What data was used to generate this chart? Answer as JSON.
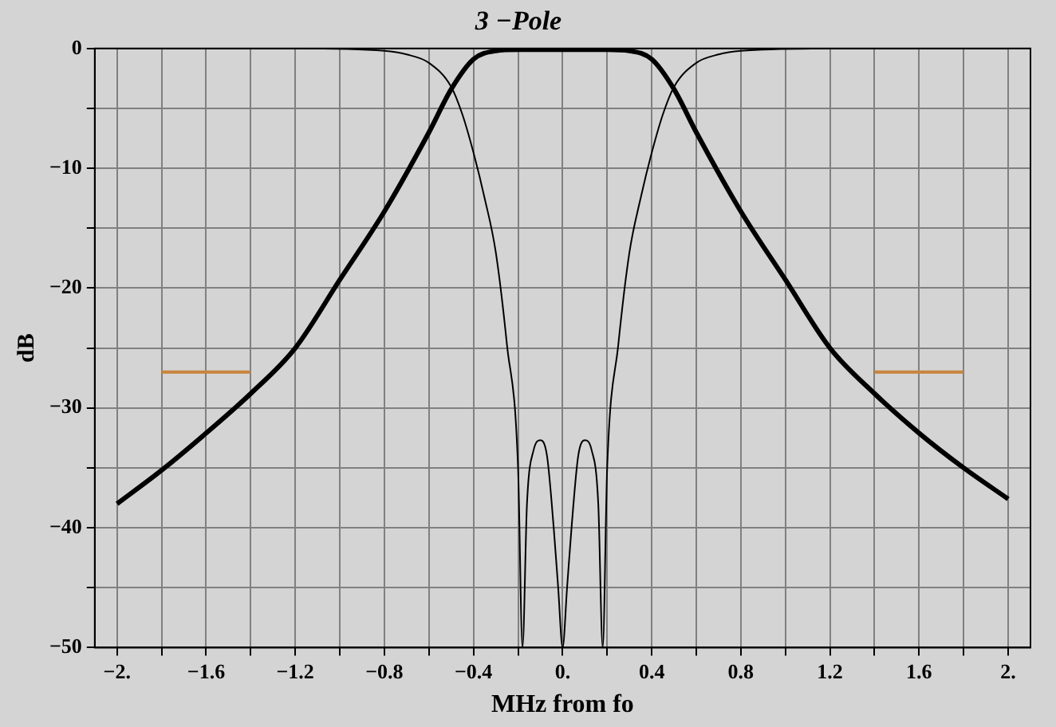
{
  "chart_data": {
    "type": "line",
    "title": "3 −Pole",
    "xlabel": "MHz from fo",
    "ylabel": "dB",
    "xlim": [
      -2.1,
      2.1
    ],
    "ylim": [
      -50,
      0
    ],
    "xticks": [
      {
        "value": -2,
        "label": "−2."
      },
      {
        "value": -1.8,
        "label": null
      },
      {
        "value": -1.6,
        "label": "−1.6"
      },
      {
        "value": -1.4,
        "label": null
      },
      {
        "value": -1.2,
        "label": "−1.2"
      },
      {
        "value": -1,
        "label": null
      },
      {
        "value": -0.8,
        "label": "−0.8"
      },
      {
        "value": -0.6,
        "label": null
      },
      {
        "value": -0.4,
        "label": "−0.4"
      },
      {
        "value": -0.2,
        "label": null
      },
      {
        "value": 0,
        "label": "0."
      },
      {
        "value": 0.2,
        "label": null
      },
      {
        "value": 0.4,
        "label": "0.4"
      },
      {
        "value": 0.6,
        "label": null
      },
      {
        "value": 0.8,
        "label": "0.8"
      },
      {
        "value": 1,
        "label": null
      },
      {
        "value": 1.2,
        "label": "1.2"
      },
      {
        "value": 1.4,
        "label": null
      },
      {
        "value": 1.6,
        "label": "1.6"
      },
      {
        "value": 1.8,
        "label": null
      },
      {
        "value": 2,
        "label": "2."
      }
    ],
    "yticks": [
      {
        "value": 0,
        "label": "0"
      },
      {
        "value": -5,
        "label": null
      },
      {
        "value": -10,
        "label": "−10"
      },
      {
        "value": -15,
        "label": null
      },
      {
        "value": -20,
        "label": "−20"
      },
      {
        "value": -25,
        "label": null
      },
      {
        "value": -30,
        "label": "−30"
      },
      {
        "value": -35,
        "label": null
      },
      {
        "value": -40,
        "label": "−40"
      },
      {
        "value": -45,
        "label": null
      },
      {
        "value": -50,
        "label": "−50"
      }
    ],
    "grid": true,
    "legend": false,
    "series": [
      {
        "color": "#000000",
        "x": [
          -2,
          -1.8,
          -1.6,
          -1.4,
          -1.2,
          -1,
          -0.8,
          -0.6,
          -0.5,
          -0.4,
          -0.3,
          -0.2,
          0,
          0.2,
          0.3,
          0.4,
          0.5,
          0.6,
          0.8,
          1,
          1.2,
          1.4,
          1.6,
          1.8,
          2
        ],
        "values": [
          -38,
          -35.2,
          -32.1,
          -28.8,
          -25,
          -19.3,
          -13.6,
          -7,
          -3.4,
          -0.9,
          -0.2,
          -0.1,
          -0.1,
          -0.1,
          -0.2,
          -0.9,
          -3.4,
          -7,
          -13.6,
          -19.3,
          -25,
          -28.8,
          -32.1,
          -35,
          -37.6
        ]
      },
      {
        "color": "#000000",
        "x": [
          -2,
          -1.2,
          -0.8,
          -0.7,
          -0.6,
          -0.5,
          -0.45,
          -0.4,
          -0.35,
          -0.3,
          -0.25,
          -0.2,
          -0.18,
          -0.16,
          -0.13,
          -0.1,
          -0.07,
          -0.04,
          -0.02,
          0,
          0.02,
          0.04,
          0.07,
          0.1,
          0.13,
          0.16,
          0.18,
          0.2,
          0.25,
          0.3,
          0.35,
          0.4,
          0.45,
          0.5,
          0.6,
          0.7,
          0.8,
          1.2,
          2
        ],
        "values": [
          0,
          0,
          -0.2,
          -0.5,
          -1.2,
          -3.2,
          -5.5,
          -8.7,
          -12.5,
          -17,
          -24.7,
          -35,
          -50,
          -38,
          -33.5,
          -32.7,
          -34,
          -40,
          -45,
          -50,
          -45,
          -40,
          -34,
          -32.7,
          -33.5,
          -38,
          -50,
          -35,
          -24.7,
          -17,
          -12.5,
          -8.7,
          -5.5,
          -3.2,
          -1.2,
          -0.5,
          -0.2,
          0,
          0
        ]
      },
      {
        "color": "#c8843c",
        "x": [
          -1.8,
          -1.4
        ],
        "values": [
          -27,
          -27
        ]
      },
      {
        "color": "#c8843c",
        "x": [
          1.4,
          1.8
        ],
        "values": [
          -27,
          -27
        ]
      }
    ]
  }
}
